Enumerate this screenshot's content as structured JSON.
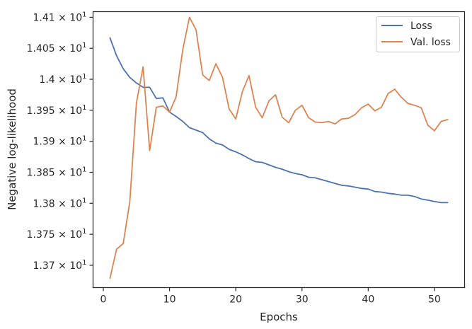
{
  "chart_data": {
    "type": "line",
    "title": "",
    "xlabel": "Epochs",
    "ylabel": "Negative log-likelihood",
    "xlim": [
      -1.55,
      54.55
    ],
    "ylim": [
      13.664,
      14.109
    ],
    "xticks": [
      {
        "value": 0,
        "label": "0"
      },
      {
        "value": 10,
        "label": "10"
      },
      {
        "value": 20,
        "label": "20"
      },
      {
        "value": 30,
        "label": "30"
      },
      {
        "value": 40,
        "label": "40"
      },
      {
        "value": 50,
        "label": "50"
      }
    ],
    "yticks": [
      {
        "value": 13.7,
        "mant": "1.37",
        "exp": "1"
      },
      {
        "value": 13.75,
        "mant": "1.375",
        "exp": "1"
      },
      {
        "value": 13.8,
        "mant": "1.38",
        "exp": "1"
      },
      {
        "value": 13.85,
        "mant": "1.385",
        "exp": "1"
      },
      {
        "value": 13.9,
        "mant": "1.39",
        "exp": "1"
      },
      {
        "value": 13.95,
        "mant": "1.395",
        "exp": "1"
      },
      {
        "value": 14.0,
        "mant": "1.4",
        "exp": "1"
      },
      {
        "value": 14.05,
        "mant": "1.405",
        "exp": "1"
      },
      {
        "value": 14.1,
        "mant": "1.41",
        "exp": "1"
      }
    ],
    "times_sign": "×",
    "base": "10",
    "grid": false,
    "legend_position": "top-right",
    "x": [
      1,
      2,
      3,
      4,
      5,
      6,
      7,
      8,
      9,
      10,
      11,
      12,
      13,
      14,
      15,
      16,
      17,
      18,
      19,
      20,
      21,
      22,
      23,
      24,
      25,
      26,
      27,
      28,
      29,
      30,
      31,
      32,
      33,
      34,
      35,
      36,
      37,
      38,
      39,
      40,
      41,
      42,
      43,
      44,
      45,
      46,
      47,
      48,
      49,
      50,
      51,
      52
    ],
    "series": [
      {
        "name": "Loss",
        "color": "#4c72b0",
        "values": [
          14.067,
          14.038,
          14.017,
          14.003,
          13.994,
          13.987,
          13.987,
          13.969,
          13.97,
          13.947,
          13.94,
          13.932,
          13.922,
          13.918,
          13.914,
          13.904,
          13.897,
          13.894,
          13.887,
          13.883,
          13.878,
          13.872,
          13.867,
          13.866,
          13.862,
          13.858,
          13.855,
          13.851,
          13.848,
          13.846,
          13.842,
          13.841,
          13.838,
          13.835,
          13.832,
          13.829,
          13.828,
          13.826,
          13.824,
          13.823,
          13.819,
          13.818,
          13.816,
          13.815,
          13.813,
          13.813,
          13.811,
          13.807,
          13.805,
          13.803,
          13.801,
          13.801
        ]
      },
      {
        "name": "Val. loss",
        "color": "#dd8452",
        "values": [
          13.679,
          13.726,
          13.735,
          13.802,
          13.962,
          14.02,
          13.885,
          13.955,
          13.957,
          13.947,
          13.972,
          14.048,
          14.1,
          14.08,
          14.007,
          13.998,
          14.025,
          14.003,
          13.952,
          13.936,
          13.98,
          14.006,
          13.955,
          13.938,
          13.965,
          13.975,
          13.939,
          13.93,
          13.95,
          13.958,
          13.938,
          13.931,
          13.93,
          13.932,
          13.928,
          13.936,
          13.937,
          13.943,
          13.954,
          13.96,
          13.949,
          13.955,
          13.977,
          13.984,
          13.971,
          13.961,
          13.958,
          13.954,
          13.926,
          13.917,
          13.932,
          13.935
        ]
      }
    ]
  }
}
